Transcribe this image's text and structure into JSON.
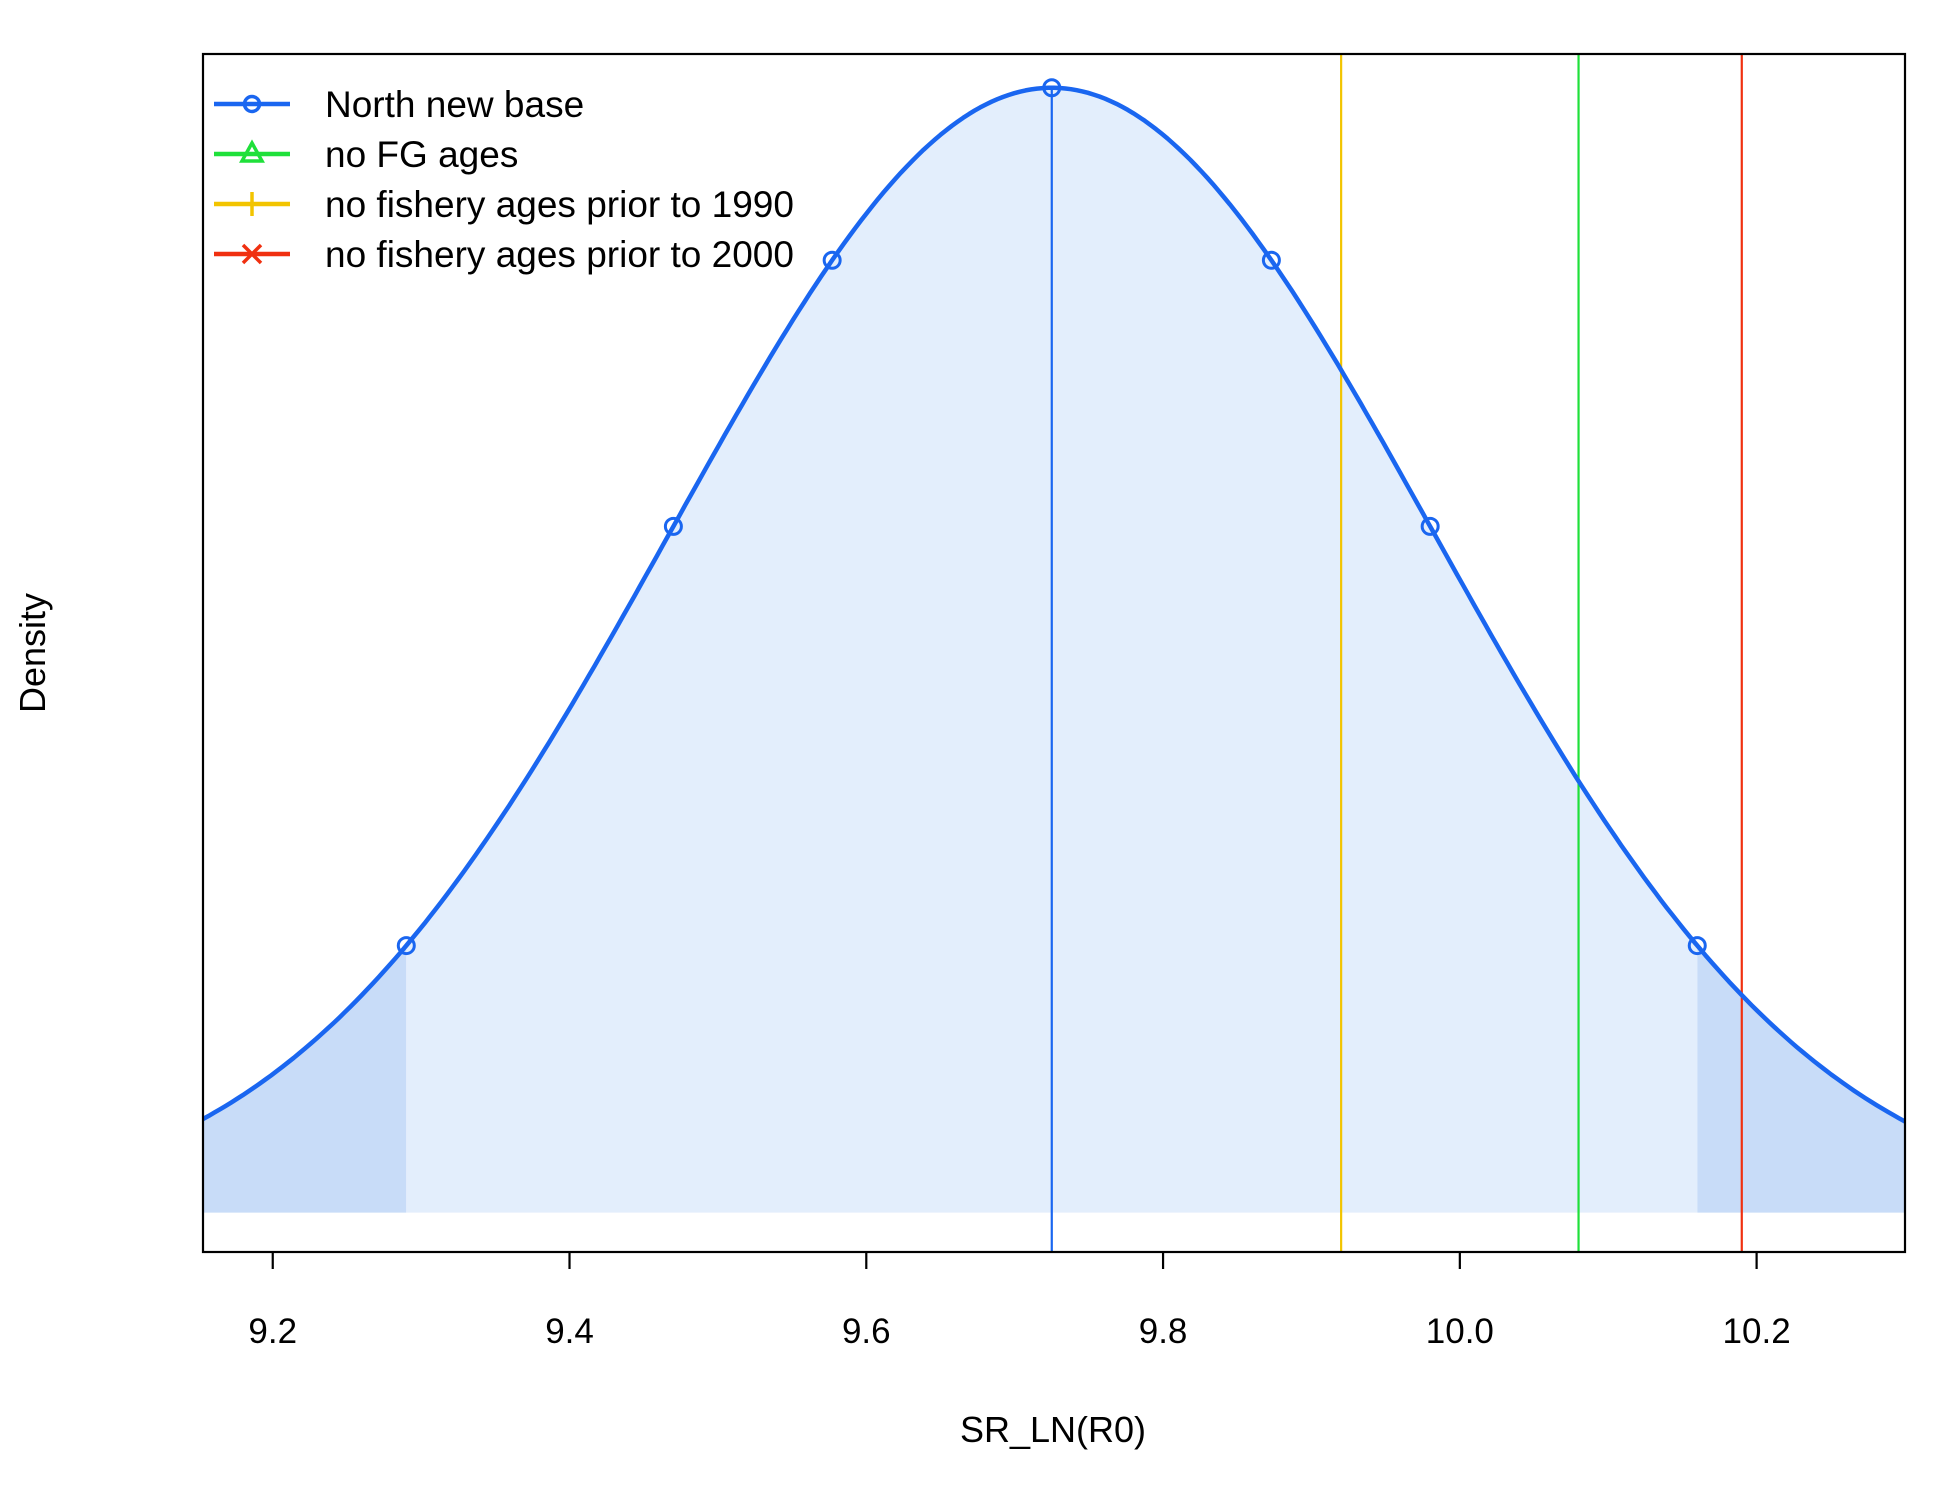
{
  "chart_data": {
    "type": "line",
    "title": "",
    "xlabel": "SR_LN(R0)",
    "ylabel": "Density",
    "xlim": [
      9.153,
      10.3
    ],
    "ylim": [
      -0.035,
      1.03
    ],
    "grid": false,
    "legend_position": "top-left",
    "x_ticks": [
      {
        "value": 9.2,
        "label": "9.2"
      },
      {
        "value": 9.4,
        "label": "9.4"
      },
      {
        "value": 9.6,
        "label": "9.6"
      },
      {
        "value": 9.8,
        "label": "9.8"
      },
      {
        "value": 10.0,
        "label": "10.0"
      },
      {
        "value": 10.2,
        "label": "10.2"
      }
    ],
    "series": [
      {
        "name": "North new base",
        "kind": "density",
        "color": "#1a66f0",
        "marker": "circle",
        "mean": 9.725,
        "sd": 0.2565,
        "peak": 1.0,
        "ci_lower": 9.29,
        "ci_upper": 10.16,
        "marker_x": [
          9.29,
          9.47,
          9.577,
          9.725,
          9.873,
          9.98,
          10.16
        ]
      },
      {
        "name": "no FG ages",
        "kind": "point-estimate",
        "color": "#1fe03a",
        "marker": "triangle",
        "x": 10.08
      },
      {
        "name": "no fishery ages prior to 1990",
        "kind": "point-estimate",
        "color": "#f2c400",
        "marker": "plus",
        "x": 9.92
      },
      {
        "name": "no fishery ages prior to 2000",
        "kind": "point-estimate",
        "color": "#f03010",
        "marker": "cross",
        "x": 10.19
      }
    ],
    "fill_colors": {
      "interval": "#e3eefc",
      "tails": "#c8dcf8"
    }
  }
}
